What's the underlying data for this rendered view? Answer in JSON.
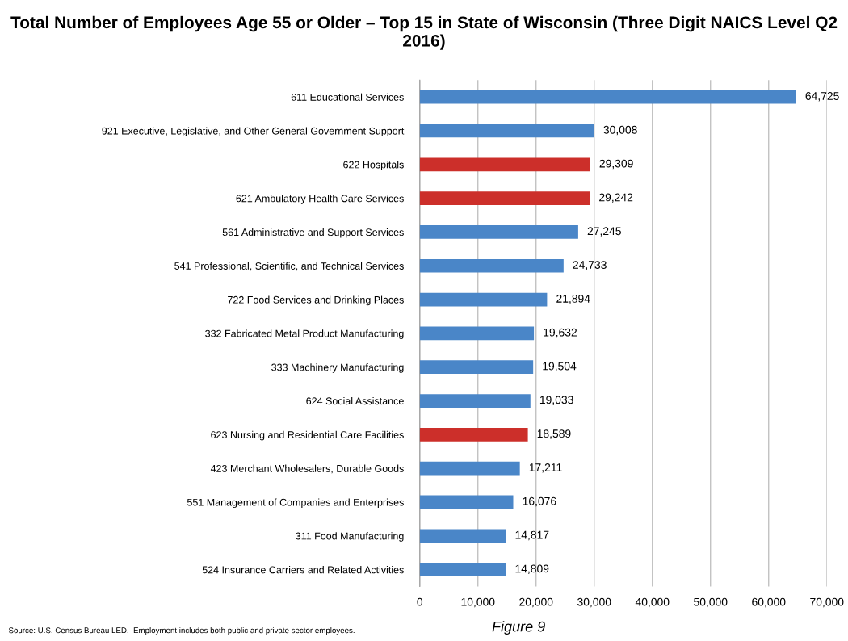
{
  "chart_data": {
    "type": "bar",
    "orientation": "horizontal",
    "title": "Total Number of Employees Age 55 or Older – Top 15 in State of Wisconsin (Three Digit NAICS Level Q2 2016)",
    "categories": [
      "611 Educational Services",
      "921 Executive, Legislative, and Other General Government Support",
      "622 Hospitals",
      "621 Ambulatory Health Care Services",
      "561 Administrative and Support Services",
      "541 Professional, Scientific, and Technical Services",
      "722 Food Services and Drinking Places",
      "332 Fabricated Metal Product Manufacturing",
      "333 Machinery Manufacturing",
      "624 Social Assistance",
      "623 Nursing and Residential Care Facilities",
      "423 Merchant Wholesalers, Durable Goods",
      "551 Management of Companies and Enterprises",
      "311 Food Manufacturing",
      "524 Insurance Carriers and Related Activities"
    ],
    "values": [
      64725,
      30008,
      29309,
      29242,
      27245,
      24733,
      21894,
      19632,
      19504,
      19033,
      18589,
      17211,
      16076,
      14817,
      14809
    ],
    "colors": [
      "#4a86c8",
      "#4a86c8",
      "#cc2f2a",
      "#cc2f2a",
      "#4a86c8",
      "#4a86c8",
      "#4a86c8",
      "#4a86c8",
      "#4a86c8",
      "#4a86c8",
      "#cc2f2a",
      "#4a86c8",
      "#4a86c8",
      "#4a86c8",
      "#4a86c8"
    ],
    "value_labels": [
      "64,725",
      "30,008",
      "29,309",
      "29,242",
      "27,245",
      "24,733",
      "21,894",
      "19,632",
      "19,504",
      "19,033",
      "18,589",
      "17,211",
      "16,076",
      "14,817",
      "14,809"
    ],
    "xlim": [
      0,
      70000
    ],
    "xticks": [
      0,
      {
        "value": 10000,
        "label": "10,000"
      },
      {
        "value": 20000,
        "label": "20,000"
      },
      {
        "value": 30000,
        "label": "30,000"
      },
      {
        "value": 40000,
        "label": "40,000"
      },
      {
        "value": 50000,
        "label": "50,000"
      },
      {
        "value": 60000,
        "label": "60,000"
      },
      {
        "value": 70000,
        "label": "70,000"
      }
    ],
    "grid": "x",
    "annotations": [
      "Source: U.S. Census Bureau LED.  Employment includes both public and private sector employees.",
      "Figure 9"
    ]
  }
}
